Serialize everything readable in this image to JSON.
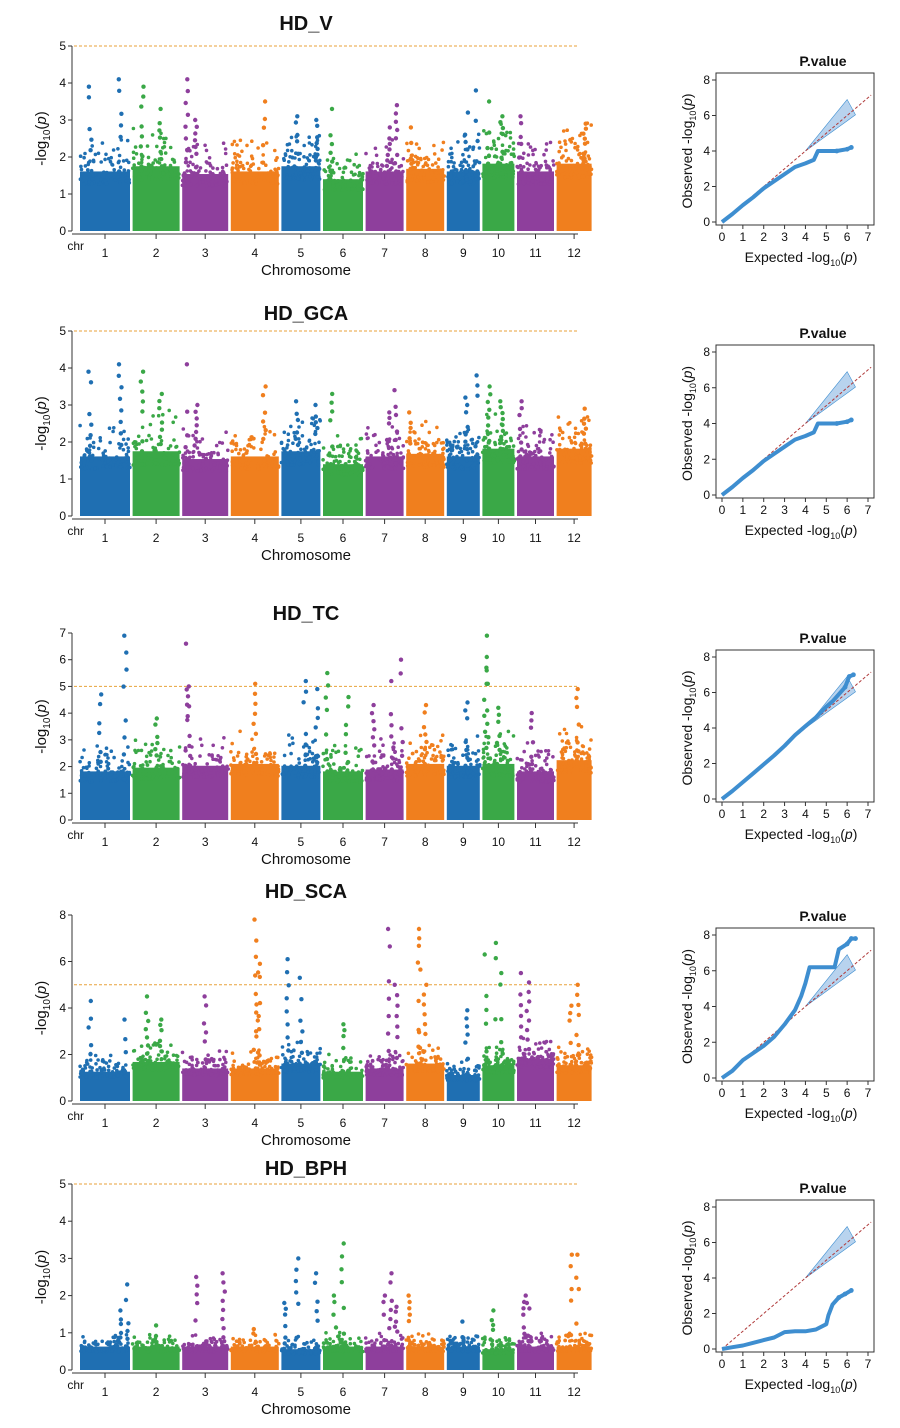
{
  "chromosome_colors": [
    "#1f6fb2",
    "#3aa847",
    "#8e3f9c",
    "#f07f1e"
  ],
  "threshold_color": "#e8a23a",
  "qq_point_color": "#3e8ed0",
  "qq_band_color": "#a6c8ea",
  "qq_line_color": "#b03a3a",
  "chart_data": [
    {
      "type": "scatter",
      "kind": "manhattan",
      "title": "HD_V",
      "xlabel": "Chromosome",
      "ylabel_html": "-log<tspan>10</tspan>(p)",
      "ylabel_main": "-log",
      "ylabel_sub": "10",
      "ylabel_tail": "(p)",
      "x_prefix": "chr",
      "categories": [
        "1",
        "2",
        "3",
        "4",
        "5",
        "6",
        "7",
        "8",
        "9",
        "10",
        "11",
        "12"
      ],
      "ylim": [
        0,
        5
      ],
      "yticks": [
        0,
        1,
        2,
        3,
        4,
        5
      ],
      "threshold": 5,
      "base_max": [
        2.3,
        2.5,
        2.2,
        2.3,
        2.5,
        2.0,
        2.3,
        2.4,
        2.3,
        2.6,
        2.3,
        2.6
      ],
      "peaks": [
        [
          1,
          0.2,
          3.9
        ],
        [
          1,
          0.8,
          4.1
        ],
        [
          2,
          0.2,
          3.9
        ],
        [
          2,
          0.6,
          3.3
        ],
        [
          3,
          0.1,
          4.1
        ],
        [
          3,
          0.3,
          3.0
        ],
        [
          4,
          0.7,
          3.5
        ],
        [
          5,
          0.4,
          3.1
        ],
        [
          5,
          0.9,
          3.0
        ],
        [
          6,
          0.2,
          3.3
        ],
        [
          7,
          0.6,
          2.8
        ],
        [
          7,
          0.8,
          3.4
        ],
        [
          8,
          0.1,
          2.8
        ],
        [
          9,
          0.6,
          3.2
        ],
        [
          9,
          0.9,
          3.8
        ],
        [
          10,
          0.2,
          3.5
        ],
        [
          10,
          0.6,
          3.1
        ],
        [
          11,
          0.1,
          3.1
        ],
        [
          12,
          0.8,
          2.9
        ]
      ],
      "qq": {
        "title": "P.value",
        "xlim": [
          0,
          7
        ],
        "ylim": [
          0,
          8
        ],
        "pts": [
          [
            0,
            0
          ],
          [
            0.5,
            0.45
          ],
          [
            1,
            0.95
          ],
          [
            1.5,
            1.4
          ],
          [
            2,
            1.9
          ],
          [
            2.5,
            2.3
          ],
          [
            3,
            2.7
          ],
          [
            3.5,
            3.1
          ],
          [
            4,
            3.3
          ],
          [
            4.4,
            3.5
          ],
          [
            4.6,
            4.0
          ],
          [
            5,
            4.0
          ],
          [
            5.5,
            4.0
          ],
          [
            6,
            4.1
          ],
          [
            6.2,
            4.2
          ]
        ]
      }
    },
    {
      "type": "scatter",
      "kind": "manhattan",
      "title": "HD_GCA",
      "xlabel": "Chromosome",
      "ylabel_main": "-log",
      "ylabel_sub": "10",
      "ylabel_tail": "(p)",
      "x_prefix": "chr",
      "categories": [
        "1",
        "2",
        "3",
        "4",
        "5",
        "6",
        "7",
        "8",
        "9",
        "10",
        "11",
        "12"
      ],
      "ylim": [
        0,
        5
      ],
      "yticks": [
        0,
        1,
        2,
        3,
        4,
        5
      ],
      "threshold": 5,
      "base_max": [
        2.3,
        2.5,
        2.2,
        2.3,
        2.5,
        2.0,
        2.3,
        2.4,
        2.3,
        2.6,
        2.3,
        2.6
      ],
      "peaks": [
        [
          1,
          0.2,
          3.9
        ],
        [
          1,
          0.8,
          4.1
        ],
        [
          2,
          0.2,
          3.9
        ],
        [
          2,
          0.6,
          3.3
        ],
        [
          3,
          0.1,
          4.1
        ],
        [
          3,
          0.3,
          3.0
        ],
        [
          4,
          0.7,
          3.5
        ],
        [
          5,
          0.4,
          3.1
        ],
        [
          5,
          0.9,
          3.0
        ],
        [
          6,
          0.2,
          3.3
        ],
        [
          7,
          0.6,
          2.8
        ],
        [
          7,
          0.8,
          3.4
        ],
        [
          8,
          0.1,
          2.8
        ],
        [
          9,
          0.6,
          3.2
        ],
        [
          9,
          0.9,
          3.8
        ],
        [
          10,
          0.2,
          3.5
        ],
        [
          10,
          0.6,
          3.1
        ],
        [
          11,
          0.1,
          3.1
        ],
        [
          12,
          0.8,
          2.9
        ]
      ],
      "qq": {
        "title": "P.value",
        "xlim": [
          0,
          7
        ],
        "ylim": [
          0,
          8
        ],
        "pts": [
          [
            0,
            0
          ],
          [
            0.5,
            0.45
          ],
          [
            1,
            0.95
          ],
          [
            1.5,
            1.4
          ],
          [
            2,
            1.9
          ],
          [
            2.5,
            2.3
          ],
          [
            3,
            2.7
          ],
          [
            3.5,
            3.1
          ],
          [
            4,
            3.3
          ],
          [
            4.4,
            3.5
          ],
          [
            4.6,
            4.0
          ],
          [
            5,
            4.0
          ],
          [
            5.5,
            4.0
          ],
          [
            6,
            4.1
          ],
          [
            6.2,
            4.2
          ]
        ]
      }
    },
    {
      "type": "scatter",
      "kind": "manhattan",
      "title": "HD_TC",
      "xlabel": "Chromosome",
      "ylabel_main": "-log",
      "ylabel_sub": "10",
      "ylabel_tail": "(p)",
      "x_prefix": "chr",
      "categories": [
        "1",
        "2",
        "3",
        "4",
        "5",
        "6",
        "7",
        "8",
        "9",
        "10",
        "11",
        "12"
      ],
      "ylim": [
        0,
        7
      ],
      "yticks": [
        0,
        1,
        2,
        3,
        4,
        5,
        6,
        7
      ],
      "threshold": 5,
      "base_max": [
        2.6,
        2.8,
        2.9,
        3.0,
        2.9,
        2.6,
        2.7,
        3.0,
        2.9,
        3.0,
        2.6,
        3.2
      ],
      "peaks": [
        [
          1,
          0.4,
          4.7
        ],
        [
          1,
          0.9,
          6.9
        ],
        [
          2,
          0.5,
          3.8
        ],
        [
          3,
          0.1,
          6.6
        ],
        [
          3,
          0.15,
          5.0
        ],
        [
          4,
          0.5,
          5.1
        ],
        [
          5,
          0.6,
          5.2
        ],
        [
          5,
          0.9,
          4.9
        ],
        [
          6,
          0.1,
          5.5
        ],
        [
          6,
          0.6,
          4.6
        ],
        [
          7,
          0.2,
          4.3
        ],
        [
          7,
          0.7,
          5.2
        ],
        [
          7,
          0.95,
          6.0
        ],
        [
          8,
          0.5,
          4.3
        ],
        [
          9,
          0.6,
          4.4
        ],
        [
          10,
          0.1,
          6.9
        ],
        [
          10,
          0.15,
          6.1
        ],
        [
          10,
          0.5,
          4.2
        ],
        [
          11,
          0.4,
          4.0
        ],
        [
          12,
          0.6,
          4.9
        ]
      ],
      "qq": {
        "title": "P.value",
        "xlim": [
          0,
          7
        ],
        "ylim": [
          0,
          8
        ],
        "pts": [
          [
            0,
            0
          ],
          [
            0.5,
            0.45
          ],
          [
            1,
            0.95
          ],
          [
            1.5,
            1.45
          ],
          [
            2,
            1.95
          ],
          [
            2.5,
            2.45
          ],
          [
            3,
            3.0
          ],
          [
            3.5,
            3.6
          ],
          [
            4,
            4.1
          ],
          [
            4.5,
            4.6
          ],
          [
            5,
            5.2
          ],
          [
            5.3,
            5.5
          ],
          [
            5.6,
            5.9
          ],
          [
            5.9,
            6.3
          ],
          [
            6.1,
            6.9
          ],
          [
            6.3,
            7.0
          ]
        ]
      }
    },
    {
      "type": "scatter",
      "kind": "manhattan",
      "title": "HD_SCA",
      "xlabel": "Chromosome",
      "ylabel_main": "-log",
      "ylabel_sub": "10",
      "ylabel_tail": "(p)",
      "x_prefix": "chr",
      "categories": [
        "1",
        "2",
        "3",
        "4",
        "5",
        "6",
        "7",
        "8",
        "9",
        "10",
        "11",
        "12"
      ],
      "ylim": [
        0,
        8
      ],
      "yticks": [
        0,
        2,
        4,
        6,
        8
      ],
      "threshold": 5,
      "base_max": [
        1.8,
        2.4,
        2.0,
        2.0,
        2.3,
        1.8,
        2.0,
        2.3,
        1.6,
        2.2,
        2.6,
        2.2
      ],
      "peaks": [
        [
          1,
          0.2,
          4.3
        ],
        [
          1,
          0.9,
          3.5
        ],
        [
          2,
          0.3,
          4.5
        ],
        [
          2,
          0.6,
          3.5
        ],
        [
          3,
          0.5,
          4.5
        ],
        [
          4,
          0.5,
          7.8
        ],
        [
          4,
          0.55,
          6.9
        ],
        [
          4,
          0.6,
          5.9
        ],
        [
          5,
          0.15,
          6.1
        ],
        [
          5,
          0.5,
          5.3
        ],
        [
          6,
          0.5,
          3.3
        ],
        [
          7,
          0.6,
          7.4
        ],
        [
          7,
          0.8,
          5.0
        ],
        [
          8,
          0.3,
          7.4
        ],
        [
          8,
          0.35,
          7.0
        ],
        [
          8,
          0.5,
          5.0
        ],
        [
          9,
          0.6,
          3.9
        ],
        [
          10,
          0.1,
          6.3
        ],
        [
          10,
          0.4,
          6.8
        ],
        [
          10,
          0.6,
          5.5
        ],
        [
          11,
          0.1,
          5.5
        ],
        [
          11,
          0.3,
          5.1
        ],
        [
          12,
          0.4,
          4.1
        ],
        [
          12,
          0.6,
          5.0
        ]
      ],
      "qq": {
        "title": "P.value",
        "xlim": [
          0,
          7
        ],
        "ylim": [
          0,
          8
        ],
        "pts": [
          [
            0,
            0
          ],
          [
            0.5,
            0.4
          ],
          [
            1,
            1.0
          ],
          [
            1.5,
            1.4
          ],
          [
            2,
            1.8
          ],
          [
            2.5,
            2.3
          ],
          [
            3,
            3.0
          ],
          [
            3.5,
            3.8
          ],
          [
            3.8,
            4.6
          ],
          [
            4,
            5.3
          ],
          [
            4.2,
            6.2
          ],
          [
            5,
            6.2
          ],
          [
            5.4,
            6.2
          ],
          [
            5.6,
            7.2
          ],
          [
            6,
            7.5
          ],
          [
            6.2,
            7.8
          ],
          [
            6.4,
            7.8
          ]
        ]
      }
    },
    {
      "type": "scatter",
      "kind": "manhattan",
      "title": "HD_BPH",
      "xlabel": "Chromosome",
      "ylabel_main": "-log",
      "ylabel_sub": "10",
      "ylabel_tail": "(p)",
      "x_prefix": "chr",
      "categories": [
        "1",
        "2",
        "3",
        "4",
        "5",
        "6",
        "7",
        "8",
        "9",
        "10",
        "11",
        "12"
      ],
      "ylim": [
        0,
        5
      ],
      "yticks": [
        0,
        1,
        2,
        3,
        4,
        5
      ],
      "threshold": 5,
      "base_max": [
        0.9,
        0.9,
        0.9,
        0.9,
        0.8,
        0.9,
        0.9,
        0.9,
        0.9,
        0.8,
        0.9,
        0.9
      ],
      "peaks": [
        [
          1,
          0.8,
          1.6
        ],
        [
          1,
          0.95,
          2.3
        ],
        [
          2,
          0.5,
          1.2
        ],
        [
          3,
          0.3,
          2.5
        ],
        [
          3,
          0.9,
          2.6
        ],
        [
          4,
          0.5,
          1.1
        ],
        [
          5,
          0.1,
          1.8
        ],
        [
          5,
          0.4,
          3.0
        ],
        [
          5,
          0.9,
          2.6
        ],
        [
          6,
          0.3,
          2.0
        ],
        [
          6,
          0.5,
          3.4
        ],
        [
          7,
          0.5,
          2.0
        ],
        [
          7,
          0.65,
          2.6
        ],
        [
          7,
          0.8,
          1.7
        ],
        [
          8,
          0.1,
          2.0
        ],
        [
          9,
          0.5,
          1.3
        ],
        [
          10,
          0.3,
          1.6
        ],
        [
          11,
          0.2,
          2.0
        ],
        [
          11,
          0.3,
          1.8
        ],
        [
          12,
          0.4,
          3.1
        ],
        [
          12,
          0.6,
          3.1
        ]
      ],
      "qq": {
        "title": "P.value",
        "xlim": [
          0,
          7
        ],
        "ylim": [
          0,
          8
        ],
        "pts": [
          [
            0,
            0
          ],
          [
            0.5,
            0.1
          ],
          [
            1,
            0.2
          ],
          [
            1.5,
            0.35
          ],
          [
            2,
            0.5
          ],
          [
            2.5,
            0.65
          ],
          [
            3,
            0.95
          ],
          [
            3.5,
            1.0
          ],
          [
            4,
            1.0
          ],
          [
            4.5,
            1.1
          ],
          [
            5,
            1.4
          ],
          [
            5.1,
            1.9
          ],
          [
            5.3,
            2.5
          ],
          [
            5.6,
            2.9
          ],
          [
            5.9,
            3.1
          ],
          [
            6.2,
            3.3
          ]
        ]
      }
    }
  ],
  "qq_labels": {
    "xlabel_main": "Expected  -log",
    "ylabel_main": "Observed  -log",
    "sub": "10",
    "tail": "(p)"
  }
}
